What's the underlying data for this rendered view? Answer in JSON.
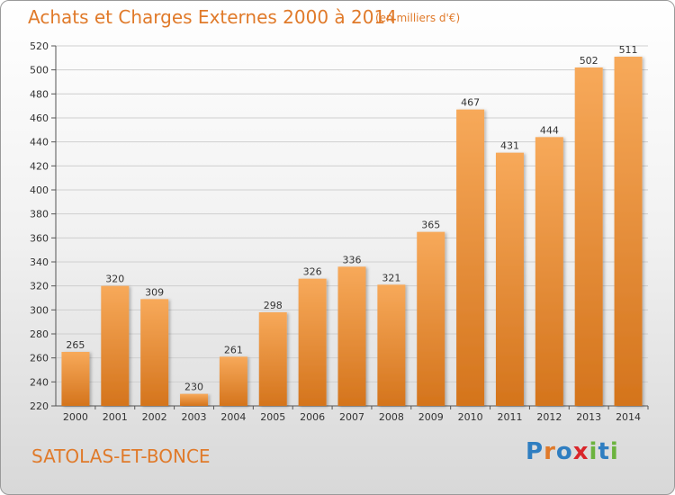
{
  "header": {
    "title": "Achats et Charges Externes 2000 à 2014",
    "subtitle": "(en milliers d'€)"
  },
  "footer": {
    "commune": "SATOLAS-ET-BONCE",
    "logo": {
      "letters": [
        "P",
        "r",
        "o",
        "x",
        "i",
        "t",
        "i"
      ]
    }
  },
  "colors": {
    "bar_top": "#f7a95a",
    "bar_bottom": "#d4741c",
    "accent": "#e07a2a",
    "grid": "#cfcfcf",
    "logo_letters": [
      "#2f7ec1",
      "#e07a2a",
      "#2f7ec1",
      "#d9262b",
      "#6cb33f",
      "#2f7ec1",
      "#6cb33f"
    ]
  },
  "chart_data": {
    "type": "bar",
    "title": "Achats et Charges Externes 2000 à 2014",
    "subtitle": "(en milliers d'€)",
    "xlabel": "",
    "ylabel": "",
    "categories": [
      "2000",
      "2001",
      "2002",
      "2003",
      "2004",
      "2005",
      "2006",
      "2007",
      "2008",
      "2009",
      "2010",
      "2011",
      "2012",
      "2013",
      "2014"
    ],
    "values": [
      265,
      320,
      309,
      230,
      261,
      298,
      326,
      336,
      321,
      365,
      467,
      431,
      444,
      502,
      511
    ],
    "ylim": [
      220,
      520
    ],
    "yticks": [
      220,
      240,
      260,
      280,
      300,
      320,
      340,
      360,
      380,
      400,
      420,
      440,
      460,
      480,
      500,
      520
    ],
    "grid": true,
    "legend": "none"
  }
}
